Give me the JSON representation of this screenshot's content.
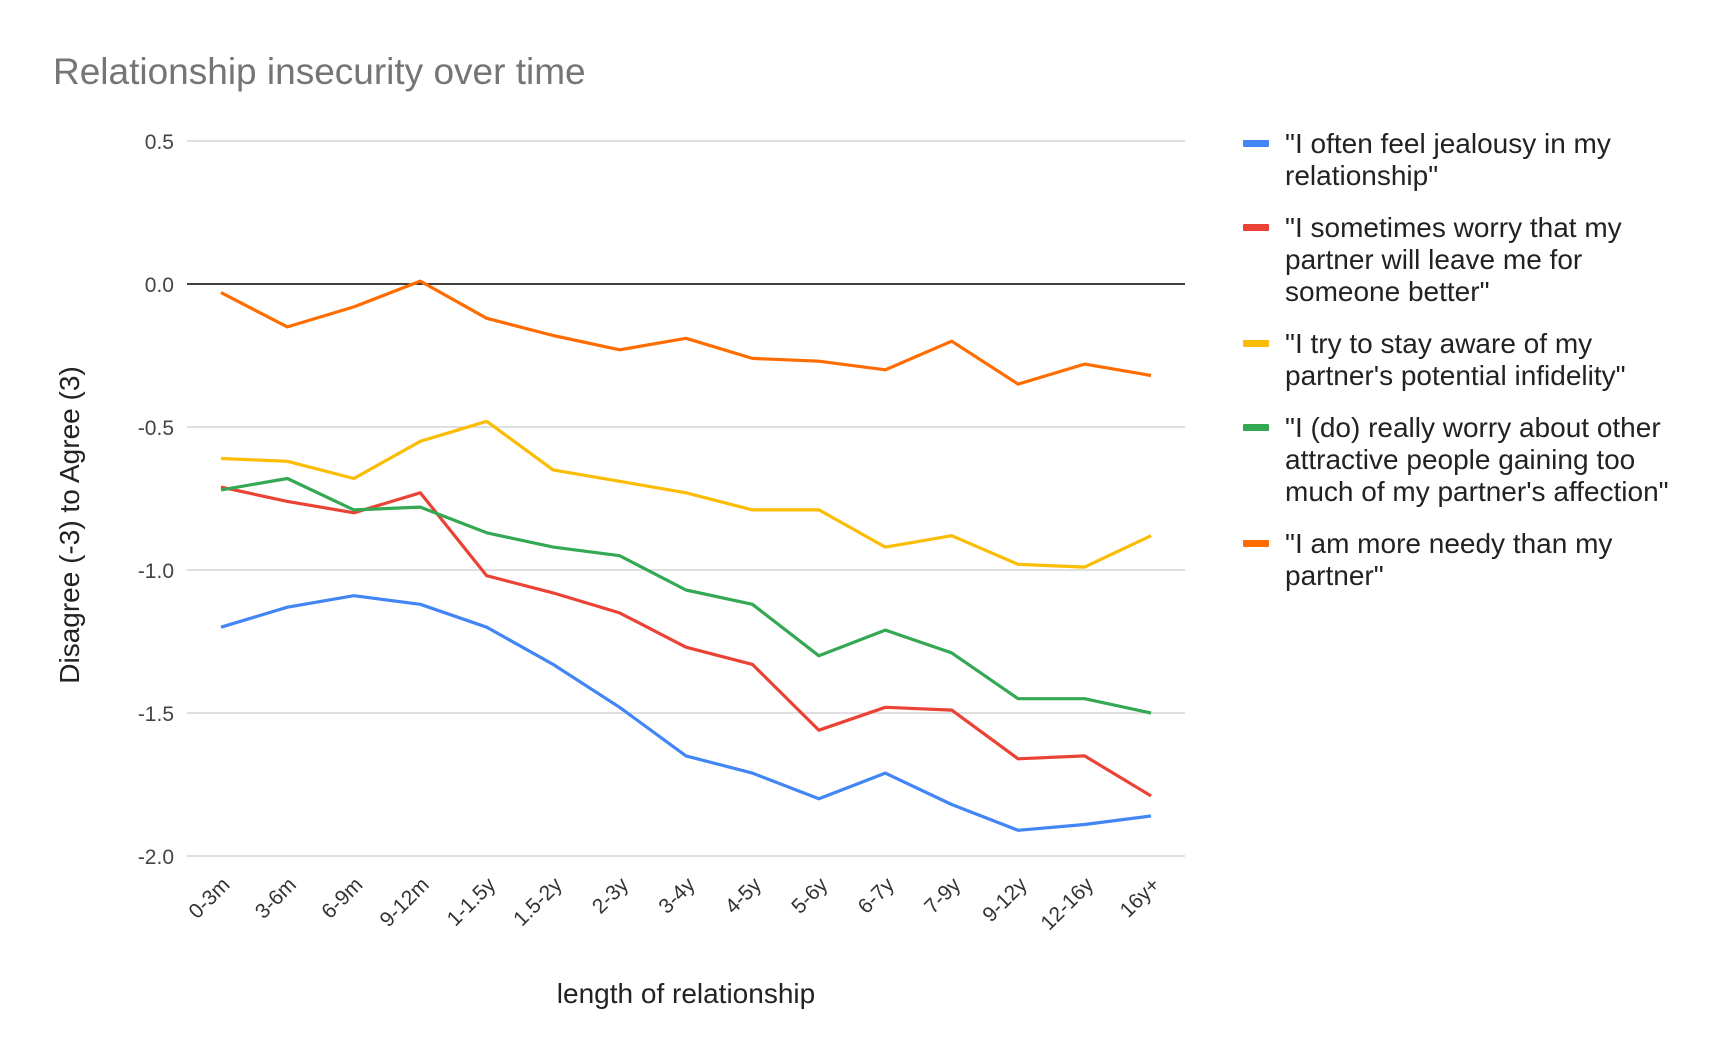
{
  "chart_data": {
    "type": "line",
    "title": "Relationship insecurity over time",
    "xlabel": "length of relationship",
    "ylabel": "Disagree (-3) to Agree (3)",
    "ylim": [
      -2.0,
      0.5
    ],
    "yticks": [
      "0.5",
      "0.0",
      "-0.5",
      "-1.0",
      "-1.5",
      "-2.0"
    ],
    "ytick_values": [
      0.5,
      0.0,
      -0.5,
      -1.0,
      -1.5,
      -2.0
    ],
    "grid": true,
    "legend": "right",
    "categories": [
      "0-3m",
      "3-6m",
      "6-9m",
      "9-12m",
      "1-1.5y",
      "1.5-2y",
      "2-3y",
      "3-4y",
      "4-5y",
      "5-6y",
      "6-7y",
      "7-9y",
      "9-12y",
      "12-16y",
      "16y+"
    ],
    "series": [
      {
        "name": "\"I often feel jealousy in my relationship\"",
        "color": "#4285F4",
        "values": [
          -1.2,
          -1.13,
          -1.09,
          -1.12,
          -1.2,
          -1.33,
          -1.48,
          -1.65,
          -1.71,
          -1.8,
          -1.71,
          -1.82,
          -1.91,
          -1.89,
          -1.86
        ]
      },
      {
        "name": "\"I sometimes worry that my partner will leave me for someone better\"",
        "color": "#EA4335",
        "values": [
          -0.71,
          -0.76,
          -0.8,
          -0.73,
          -1.02,
          -1.08,
          -1.15,
          -1.27,
          -1.33,
          -1.56,
          -1.48,
          -1.49,
          -1.66,
          -1.65,
          -1.79
        ]
      },
      {
        "name": "\"I try to stay aware of my partner's potential infidelity\"",
        "color": "#FBBC04",
        "values": [
          -0.61,
          -0.62,
          -0.68,
          -0.55,
          -0.48,
          -0.65,
          -0.69,
          -0.73,
          -0.79,
          -0.79,
          -0.92,
          -0.88,
          -0.98,
          -0.99,
          -0.88
        ]
      },
      {
        "name": "\"I (do) really worry about other attractive people gaining too much of my partner's affection\"",
        "color": "#34A853",
        "values": [
          -0.72,
          -0.68,
          -0.79,
          -0.78,
          -0.87,
          -0.92,
          -0.95,
          -1.07,
          -1.12,
          -1.3,
          -1.21,
          -1.29,
          -1.45,
          -1.45,
          -1.5
        ]
      },
      {
        "name": "\"I am more needy than my partner\"",
        "color": "#FF6D01",
        "values": [
          -0.03,
          -0.15,
          -0.08,
          0.01,
          -0.12,
          -0.18,
          -0.23,
          -0.19,
          -0.26,
          -0.27,
          -0.3,
          -0.2,
          -0.35,
          -0.28,
          -0.32
        ]
      }
    ]
  }
}
